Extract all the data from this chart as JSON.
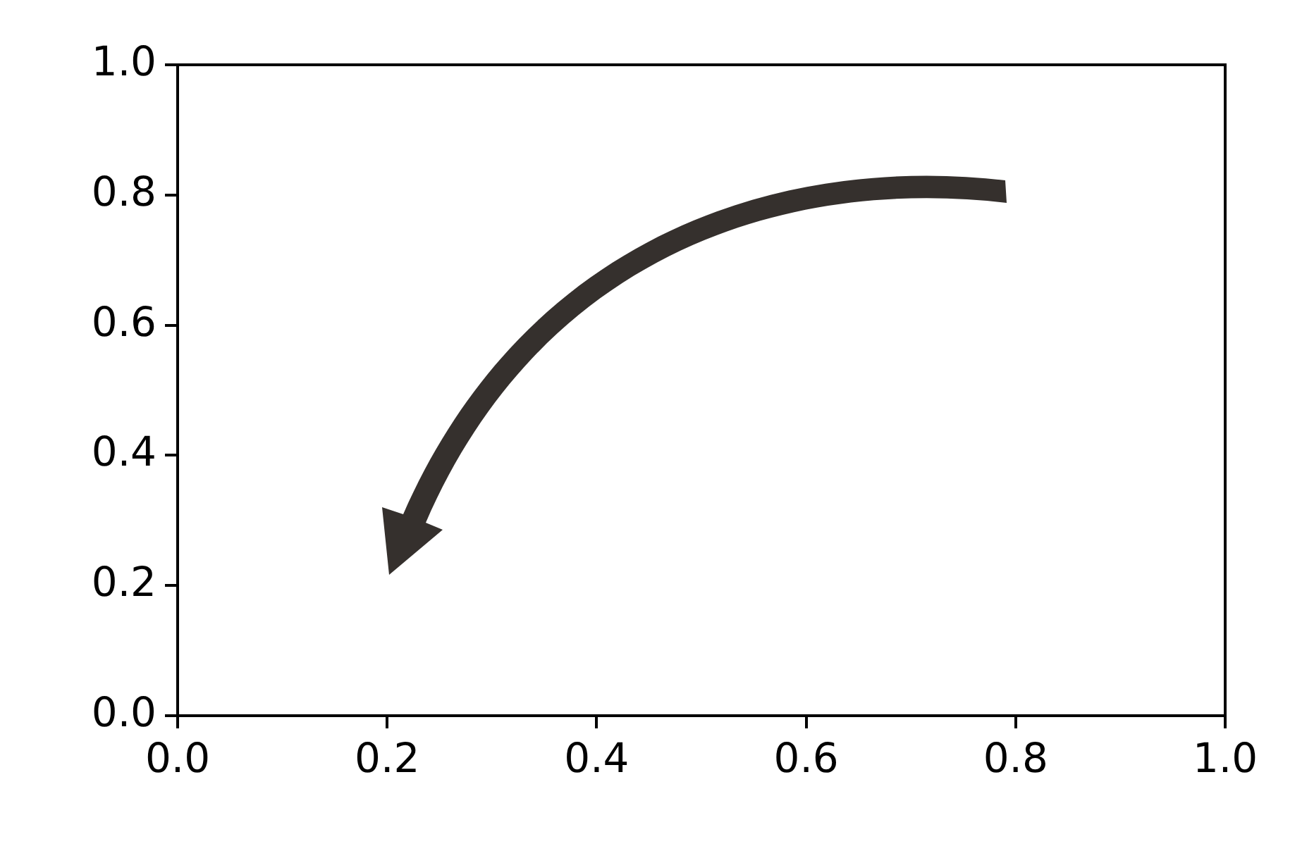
{
  "chart_data": {
    "type": "line",
    "xlim": [
      0,
      1
    ],
    "ylim": [
      0,
      1
    ],
    "xticks": [
      {
        "value": 0,
        "label": "0.0"
      },
      {
        "value": 0.2,
        "label": "0.2"
      },
      {
        "value": 0.4,
        "label": "0.4"
      },
      {
        "value": 0.6,
        "label": "0.6"
      },
      {
        "value": 0.8,
        "label": "0.8"
      },
      {
        "value": 1,
        "label": "1.0"
      }
    ],
    "yticks": [
      {
        "value": 0,
        "label": "0.0"
      },
      {
        "value": 0.2,
        "label": "0.2"
      },
      {
        "value": 0.4,
        "label": "0.4"
      },
      {
        "value": 0.6,
        "label": "0.6"
      },
      {
        "value": 0.8,
        "label": "0.8"
      },
      {
        "value": 1,
        "label": "1.0"
      }
    ]
  }
}
